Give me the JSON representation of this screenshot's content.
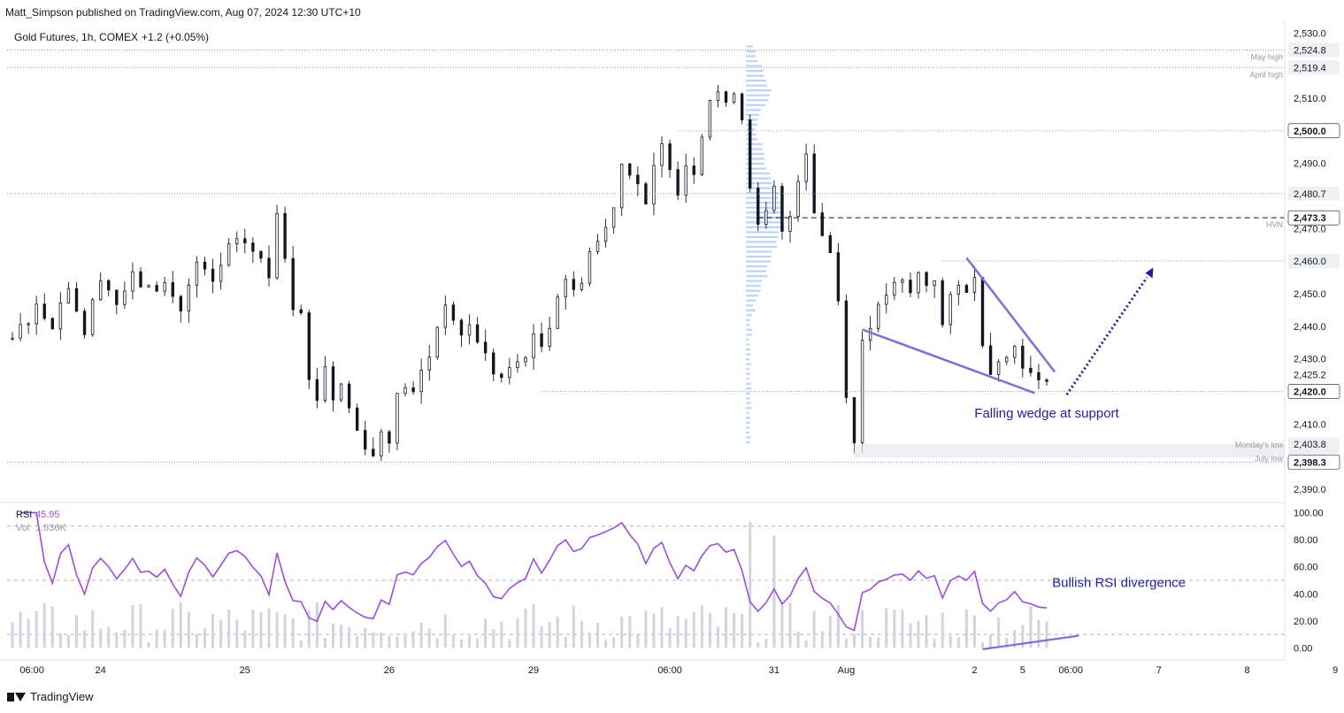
{
  "caption": "Matt_Simpson published on TradingView.com, Aug 07, 2024 12:30 UTC+10",
  "brand": "TradingView",
  "colors": {
    "up": "#131722",
    "down": "#131722",
    "rsi": "#9c4edb",
    "profile": "#a9c4f5",
    "annotation": "#1f1f9e",
    "drawing": "#7e6fd6"
  },
  "chart_data": [
    {
      "type": "candlestick",
      "title": "Gold Futures, 1h, COMEX",
      "change": "+1.2 (+0.05%)",
      "x_tick_labels": [
        "06:00",
        "24",
        "25",
        "26",
        "29",
        "06:00",
        "31",
        "Aug",
        "2",
        "5",
        "06:00",
        "7",
        "8",
        "9"
      ],
      "y_tick_labels": [
        "2,530.0",
        "2,510.0",
        "2,490.0",
        "2,470.0",
        "2,450.0",
        "2,440.0",
        "2,430.0",
        "2,410.0",
        "2,390.0"
      ],
      "ylim": [
        2387,
        2532
      ],
      "price_levels": [
        {
          "price": 2524.8,
          "label": "2,524.8",
          "note": "May high",
          "style": "dotted"
        },
        {
          "price": 2519.4,
          "label": "2,519.4",
          "note": "April high",
          "style": "dotted"
        },
        {
          "price": 2500.0,
          "label": "2,500.0",
          "note": "",
          "style": "dotted"
        },
        {
          "price": 2480.7,
          "label": "2,480.7",
          "note": "",
          "style": "dotted"
        },
        {
          "price": 2473.3,
          "label": "2,473.3",
          "note": "HVN",
          "style": "dashed"
        },
        {
          "price": 2460.0,
          "label": "2,460.0",
          "note": "",
          "style": "dotted"
        },
        {
          "price": 2420.0,
          "label": "2,420.0",
          "note": "",
          "style": "dotted"
        },
        {
          "price": 2403.8,
          "label": "2,403.8",
          "note": "Monday's low",
          "style": "band"
        },
        {
          "price": 2399.6,
          "label": "2,399.6",
          "note": "July low",
          "style": "band"
        },
        {
          "price": 2398.3,
          "label": "2,398.3",
          "note": "",
          "style": "dotted"
        }
      ],
      "current_price": {
        "price": 2425.2,
        "label": "2,425.2"
      },
      "close_path": [
        [
          0,
          2436
        ],
        [
          3,
          2446
        ],
        [
          5,
          2441
        ],
        [
          7,
          2453
        ],
        [
          9,
          2438
        ],
        [
          11,
          2456
        ],
        [
          13,
          2447
        ],
        [
          15,
          2455
        ],
        [
          17,
          2451
        ],
        [
          19,
          2453
        ],
        [
          21,
          2445
        ],
        [
          23,
          2459
        ],
        [
          25,
          2453
        ],
        [
          27,
          2464
        ],
        [
          29,
          2466
        ],
        [
          31,
          2460
        ],
        [
          32,
          2455
        ],
        [
          33,
          2476
        ],
        [
          33.5,
          2479
        ],
        [
          34,
          2462
        ],
        [
          35,
          2447
        ],
        [
          36,
          2446
        ],
        [
          37,
          2423
        ],
        [
          38,
          2418
        ],
        [
          39,
          2428
        ],
        [
          40,
          2418
        ],
        [
          41,
          2422
        ],
        [
          42,
          2415
        ],
        [
          43,
          2408
        ],
        [
          44,
          2404
        ],
        [
          45,
          2400
        ],
        [
          46,
          2408
        ],
        [
          47,
          2406
        ],
        [
          48,
          2418
        ],
        [
          49,
          2422
        ],
        [
          50,
          2419
        ],
        [
          51,
          2426
        ],
        [
          52,
          2431
        ],
        [
          53,
          2440
        ],
        [
          54,
          2448
        ],
        [
          55,
          2440
        ],
        [
          56,
          2438
        ],
        [
          57,
          2440
        ],
        [
          58,
          2436
        ],
        [
          59,
          2431
        ],
        [
          60,
          2426
        ],
        [
          61,
          2424
        ],
        [
          62,
          2426
        ],
        [
          63,
          2429
        ],
        [
          64,
          2432
        ],
        [
          65,
          2436
        ],
        [
          66,
          2434
        ],
        [
          67,
          2441
        ],
        [
          68,
          2450
        ],
        [
          69,
          2455
        ],
        [
          70,
          2450
        ],
        [
          71,
          2455
        ],
        [
          72,
          2463
        ],
        [
          73,
          2466
        ],
        [
          74,
          2470
        ],
        [
          75,
          2478
        ],
        [
          76,
          2490
        ],
        [
          77,
          2488
        ],
        [
          78,
          2484
        ],
        [
          79,
          2476
        ],
        [
          80,
          2488
        ],
        [
          81,
          2495
        ],
        [
          82,
          2490
        ],
        [
          83,
          2482
        ],
        [
          84,
          2490
        ],
        [
          85,
          2488
        ],
        [
          86,
          2500
        ],
        [
          87,
          2510
        ],
        [
          88,
          2512
        ],
        [
          89,
          2507
        ],
        [
          90,
          2513
        ],
        [
          91,
          2504
        ],
        [
          92,
          2484
        ],
        [
          93,
          2470
        ],
        [
          94,
          2474
        ],
        [
          95,
          2482
        ],
        [
          96,
          2468
        ],
        [
          97,
          2474
        ],
        [
          98,
          2486
        ],
        [
          99,
          2494
        ],
        [
          100,
          2476
        ],
        [
          101,
          2468
        ],
        [
          102,
          2463
        ],
        [
          103,
          2448
        ],
        [
          104,
          2420
        ],
        [
          105,
          2404
        ],
        [
          106,
          2436
        ],
        [
          107,
          2441
        ],
        [
          108,
          2445
        ],
        [
          109,
          2450
        ],
        [
          110,
          2452
        ],
        [
          111,
          2453
        ],
        [
          112,
          2450
        ],
        [
          113,
          2456
        ],
        [
          114,
          2453
        ],
        [
          115,
          2455
        ],
        [
          116,
          2440
        ],
        [
          117,
          2448
        ],
        [
          118,
          2452
        ],
        [
          119,
          2452
        ],
        [
          120,
          2454
        ],
        [
          121,
          2436
        ],
        [
          122,
          2426
        ],
        [
          123,
          2431
        ],
        [
          124,
          2430
        ],
        [
          125,
          2434
        ],
        [
          126,
          2429
        ],
        [
          127,
          2425
        ],
        [
          128,
          2422
        ],
        [
          129,
          2425
        ]
      ],
      "annotations": [
        "Falling wedge at support"
      ]
    },
    {
      "type": "line",
      "title": "RSI",
      "value_label": "45.95",
      "secondary_label": "Vol",
      "secondary_value": "1.936K",
      "y_tick_labels": [
        "100.00",
        "80.00",
        "60.00",
        "40.00",
        "20.00",
        "0.00"
      ],
      "ylim": [
        -5,
        105
      ],
      "reference_levels": [
        90,
        50,
        10
      ],
      "annotations": [
        "Bullish RSI divergence"
      ]
    }
  ]
}
